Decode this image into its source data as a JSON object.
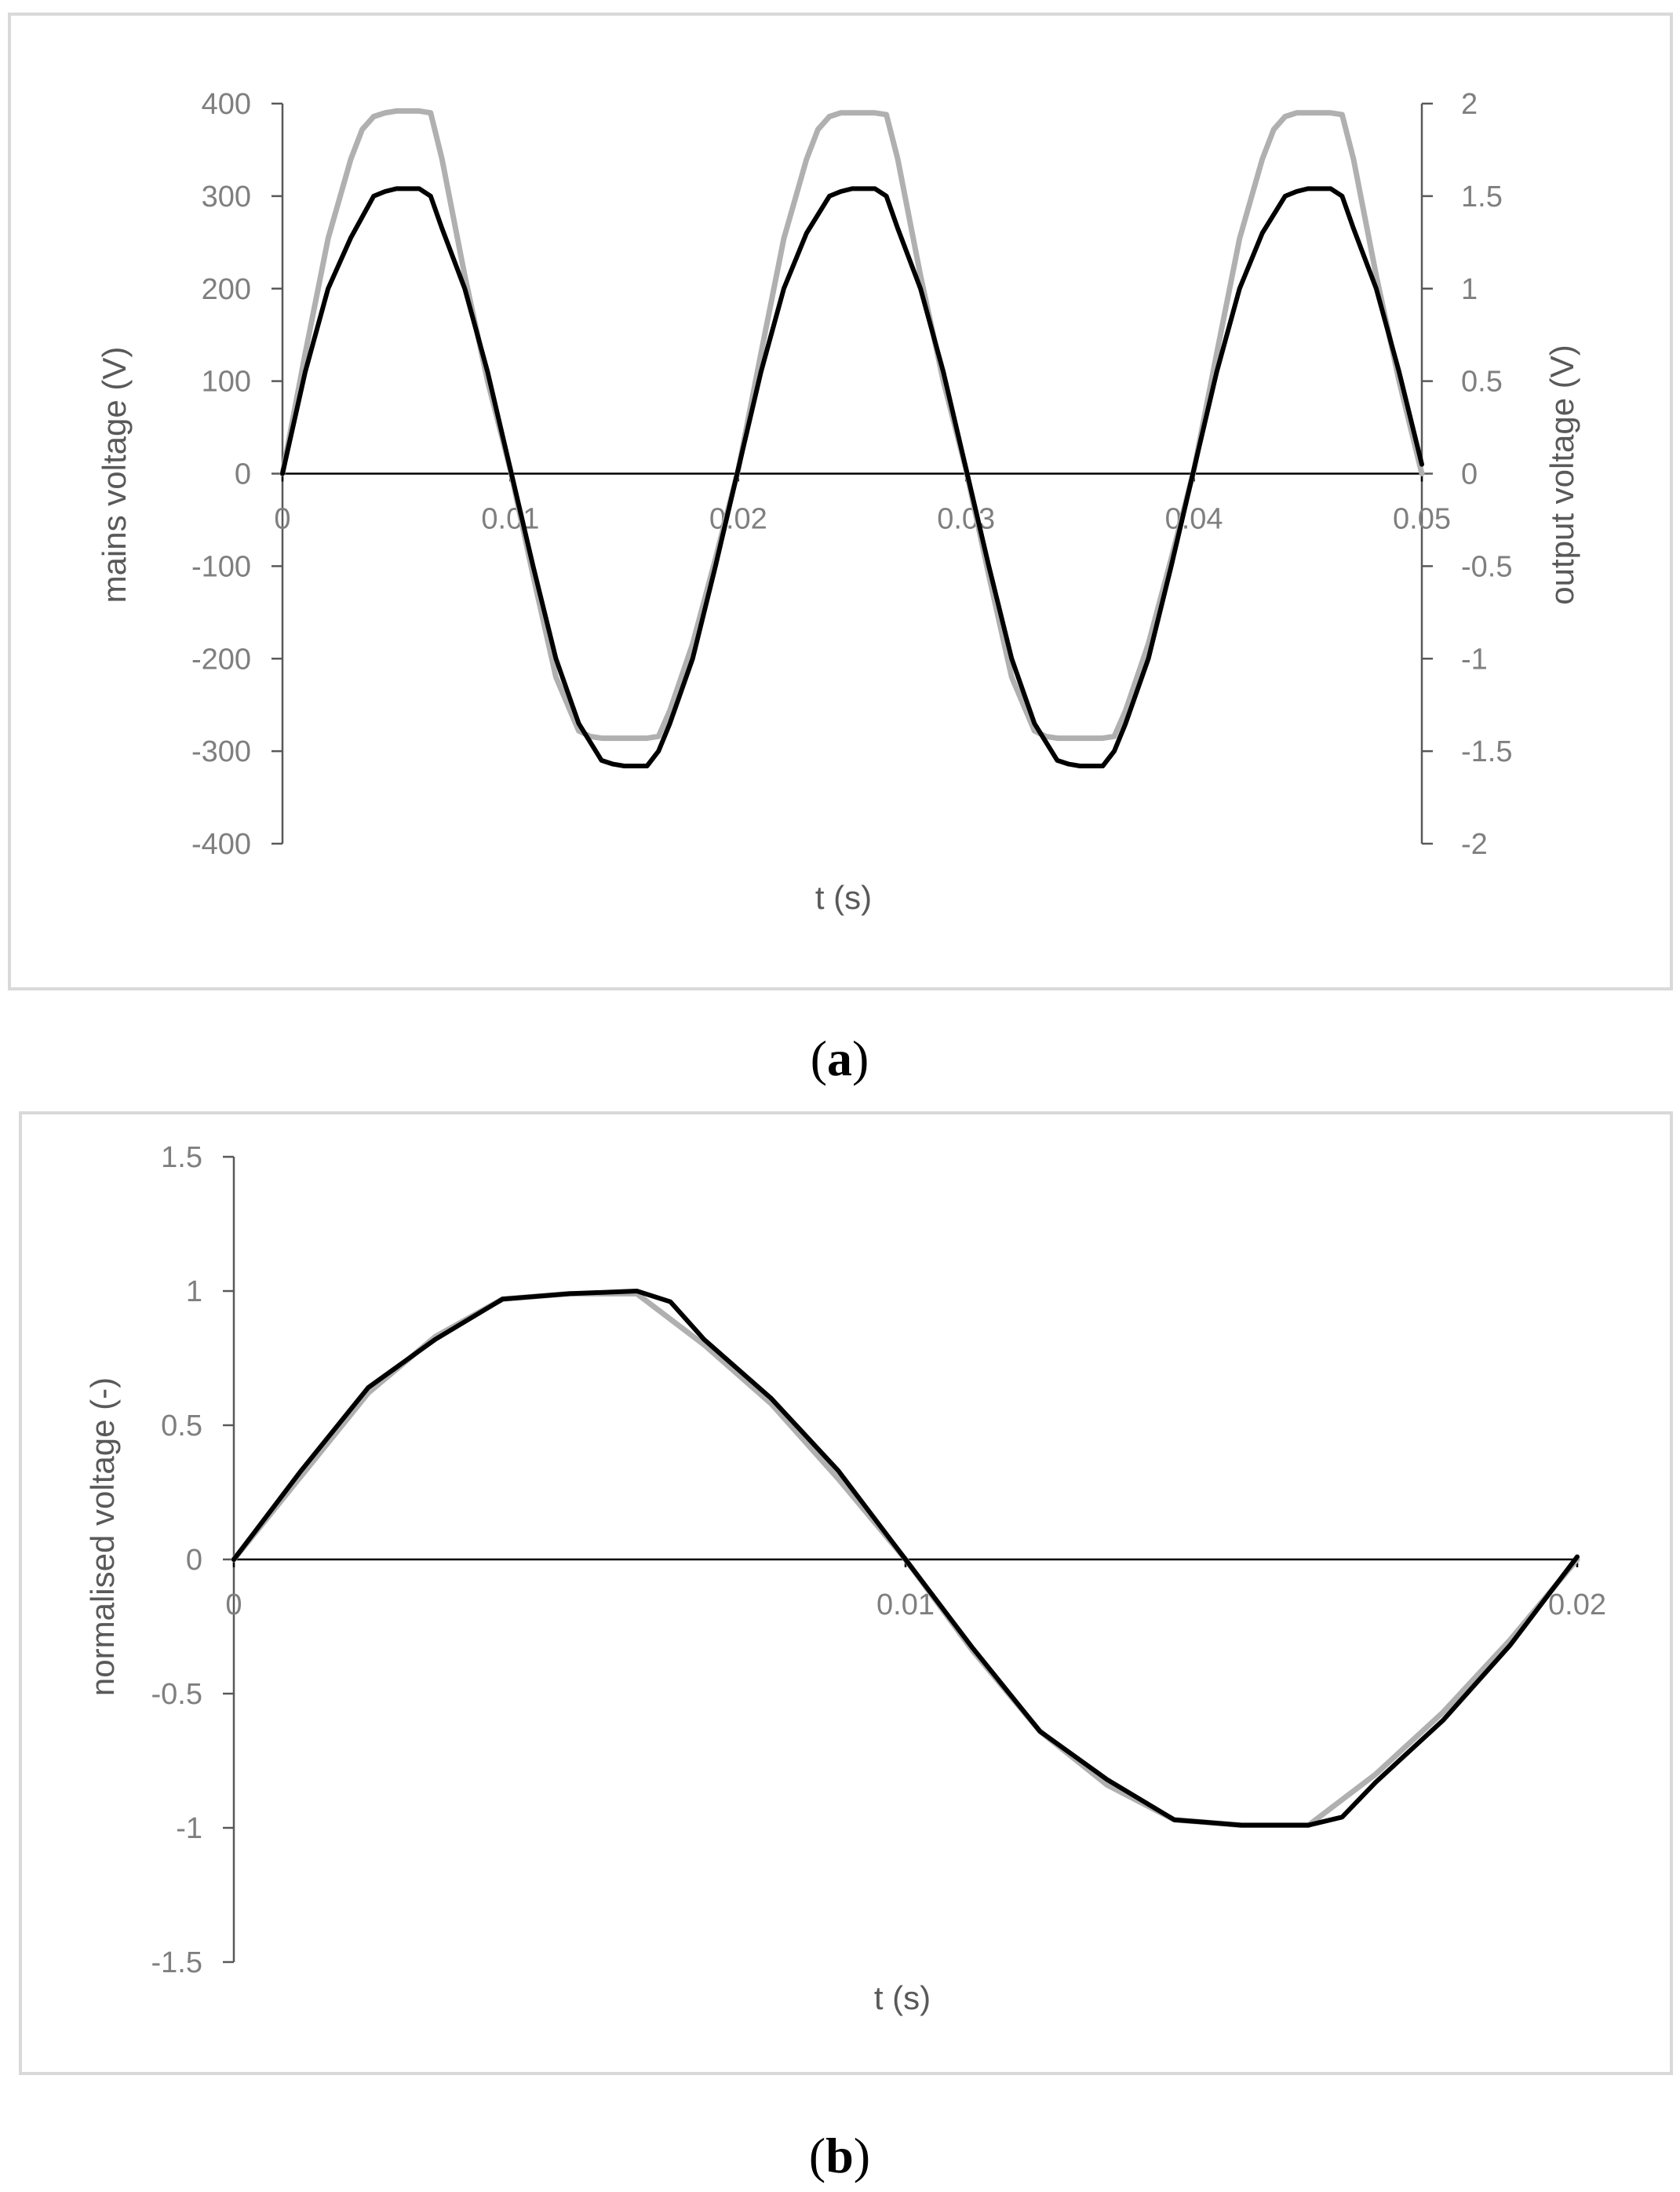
{
  "captions": {
    "a": "a",
    "b": "b"
  },
  "colors": {
    "mains": "#b0b0b0",
    "output": "#000000",
    "axis": "#595959",
    "zero_line": "#000000",
    "frame": "#d9d9d9",
    "tick_text": "#7f7f7f",
    "axis_title_text": "#595959"
  },
  "chart_data": [
    {
      "type": "line",
      "xlabel": "t (s)",
      "ylabel": "mains voltage (V)",
      "y2label": "output voltage (V)",
      "xlim": [
        0,
        0.05
      ],
      "ylim": [
        -400,
        400
      ],
      "y2lim": [
        -2,
        2
      ],
      "xticks": [
        "0",
        "0.01",
        "0.02",
        "0.03",
        "0.04",
        "0.05"
      ],
      "yticks": [
        "400",
        "300",
        "200",
        "100",
        "0",
        "-100",
        "-200",
        "-300",
        "-400"
      ],
      "y2ticks": [
        "2",
        "1.5",
        "1",
        "0.5",
        "0",
        "-0.5",
        "-1",
        "-1.5",
        "-2"
      ],
      "grid": false,
      "series": [
        {
          "color": "#b0b0b0",
          "axis": "right",
          "x": [
            0,
            0.001,
            0.002,
            0.003,
            0.0035,
            0.004,
            0.0045,
            0.005,
            0.0055,
            0.006,
            0.0065,
            0.007,
            0.008,
            0.009,
            0.01,
            0.011,
            0.012,
            0.013,
            0.0135,
            0.014,
            0.0145,
            0.015,
            0.0155,
            0.016,
            0.0165,
            0.017,
            0.018,
            0.019,
            0.02,
            0.021,
            0.022,
            0.023,
            0.0235,
            0.024,
            0.0245,
            0.025,
            0.0255,
            0.026,
            0.0265,
            0.027,
            0.028,
            0.029,
            0.03,
            0.031,
            0.032,
            0.033,
            0.0335,
            0.034,
            0.0345,
            0.035,
            0.0355,
            0.036,
            0.0365,
            0.037,
            0.038,
            0.039,
            0.04,
            0.041,
            0.042,
            0.043,
            0.0435,
            0.044,
            0.0445,
            0.045,
            0.0455,
            0.046,
            0.0465,
            0.047,
            0.048,
            0.049,
            0.05
          ],
          "y": [
            0,
            0.65,
            1.27,
            1.7,
            1.86,
            1.93,
            1.95,
            1.96,
            1.96,
            1.96,
            1.95,
            1.7,
            1.07,
            0.5,
            0.02,
            -0.55,
            -1.1,
            -1.39,
            -1.42,
            -1.43,
            -1.43,
            -1.43,
            -1.43,
            -1.43,
            -1.42,
            -1.28,
            -0.92,
            -0.46,
            0.02,
            0.65,
            1.27,
            1.7,
            1.86,
            1.93,
            1.95,
            1.95,
            1.95,
            1.95,
            1.94,
            1.7,
            1.07,
            0.5,
            0.02,
            -0.55,
            -1.1,
            -1.39,
            -1.42,
            -1.43,
            -1.43,
            -1.43,
            -1.43,
            -1.43,
            -1.42,
            -1.28,
            -0.92,
            -0.46,
            0.02,
            0.65,
            1.27,
            1.7,
            1.86,
            1.93,
            1.95,
            1.95,
            1.95,
            1.95,
            1.94,
            1.7,
            1.07,
            0.5,
            0.0
          ]
        },
        {
          "color": "#000000",
          "axis": "left",
          "x": [
            0,
            0.001,
            0.002,
            0.003,
            0.004,
            0.0045,
            0.005,
            0.0055,
            0.006,
            0.0065,
            0.007,
            0.008,
            0.009,
            0.01,
            0.011,
            0.012,
            0.013,
            0.014,
            0.0145,
            0.015,
            0.0155,
            0.016,
            0.0165,
            0.017,
            0.018,
            0.019,
            0.02,
            0.021,
            0.022,
            0.023,
            0.024,
            0.0245,
            0.025,
            0.0255,
            0.026,
            0.0265,
            0.027,
            0.028,
            0.029,
            0.03,
            0.031,
            0.032,
            0.033,
            0.034,
            0.0345,
            0.035,
            0.0355,
            0.036,
            0.0365,
            0.037,
            0.038,
            0.039,
            0.04,
            0.041,
            0.042,
            0.043,
            0.044,
            0.0445,
            0.045,
            0.0455,
            0.046,
            0.0465,
            0.047,
            0.048,
            0.049,
            0.05
          ],
          "y": [
            0,
            110,
            200,
            255,
            300,
            305,
            308,
            308,
            308,
            300,
            265,
            200,
            110,
            5,
            -100,
            -200,
            -270,
            -310,
            -314,
            -316,
            -316,
            -316,
            -300,
            -270,
            -200,
            -100,
            5,
            110,
            200,
            260,
            300,
            305,
            308,
            308,
            308,
            300,
            265,
            200,
            110,
            5,
            -100,
            -200,
            -270,
            -310,
            -314,
            -316,
            -316,
            -316,
            -300,
            -270,
            -200,
            -100,
            5,
            110,
            200,
            260,
            300,
            305,
            308,
            308,
            308,
            300,
            265,
            200,
            110,
            10
          ]
        }
      ]
    },
    {
      "type": "line",
      "xlabel": "t (s)",
      "ylabel": "normalised voltage (-)",
      "xlim": [
        0,
        0.02
      ],
      "ylim": [
        -1.5,
        1.5
      ],
      "xticks": [
        "0",
        "0.01",
        "0.02"
      ],
      "yticks": [
        "1.5",
        "1",
        "0.5",
        "0",
        "-0.5",
        "-1",
        "-1.5"
      ],
      "grid": false,
      "series": [
        {
          "color": "#b0b0b0",
          "x": [
            0,
            0.001,
            0.002,
            0.003,
            0.004,
            0.005,
            0.006,
            0.007,
            0.008,
            0.009,
            0.01,
            0.011,
            0.012,
            0.013,
            0.014,
            0.015,
            0.016,
            0.017,
            0.018,
            0.019,
            0.02
          ],
          "y": [
            0,
            0.31,
            0.62,
            0.83,
            0.97,
            0.99,
            0.99,
            0.8,
            0.58,
            0.3,
            0.0,
            -0.34,
            -0.64,
            -0.84,
            -0.97,
            -0.99,
            -0.99,
            -0.8,
            -0.57,
            -0.3,
            0.0
          ]
        },
        {
          "color": "#000000",
          "x": [
            0,
            0.001,
            0.002,
            0.003,
            0.004,
            0.005,
            0.006,
            0.0065,
            0.007,
            0.008,
            0.009,
            0.01,
            0.011,
            0.012,
            0.013,
            0.014,
            0.015,
            0.016,
            0.0165,
            0.017,
            0.018,
            0.019,
            0.02
          ],
          "y": [
            0,
            0.33,
            0.64,
            0.82,
            0.97,
            0.99,
            1.0,
            0.96,
            0.82,
            0.6,
            0.33,
            0.0,
            -0.33,
            -0.64,
            -0.82,
            -0.97,
            -0.99,
            -0.99,
            -0.96,
            -0.83,
            -0.6,
            -0.32,
            0.01
          ]
        }
      ]
    }
  ]
}
